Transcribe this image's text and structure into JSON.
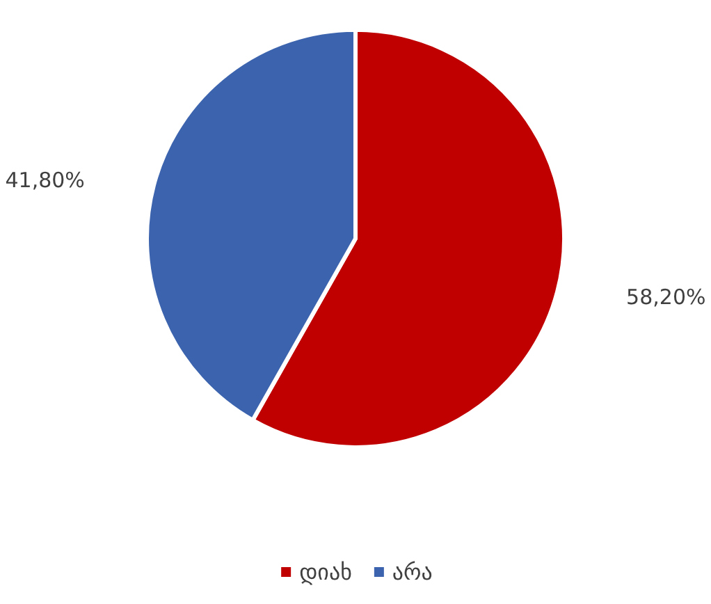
{
  "chart_data": {
    "type": "pie",
    "categories": [
      "დიახ",
      "არა"
    ],
    "values": [
      58.2,
      41.8
    ],
    "colors": [
      "#c00000",
      "#3c64ae"
    ],
    "value_labels": [
      "58,20%",
      "41,80%"
    ],
    "legend": "bottom"
  }
}
